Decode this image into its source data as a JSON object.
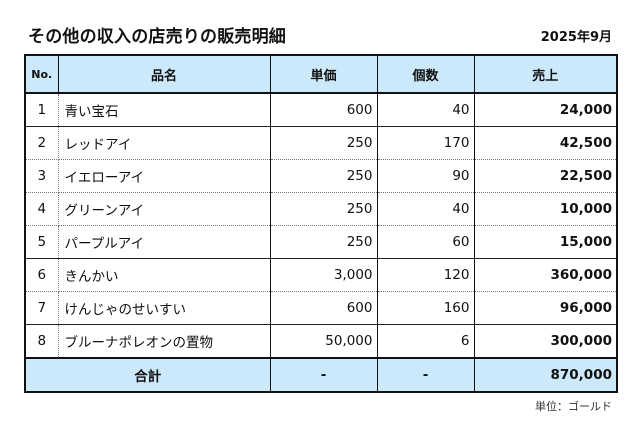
{
  "header": {
    "title": "その他の収入の店売りの販売明細",
    "period": "2025年9月"
  },
  "table": {
    "columns": [
      "No.",
      "品名",
      "単価",
      "個数",
      "売上"
    ],
    "rows": [
      {
        "no": "1",
        "name": "青い宝石",
        "price": "600",
        "qty": "40",
        "sales": "24,000"
      },
      {
        "no": "2",
        "name": "レッドアイ",
        "price": "250",
        "qty": "170",
        "sales": "42,500"
      },
      {
        "no": "3",
        "name": "イエローアイ",
        "price": "250",
        "qty": "90",
        "sales": "22,500"
      },
      {
        "no": "4",
        "name": "グリーンアイ",
        "price": "250",
        "qty": "40",
        "sales": "10,000"
      },
      {
        "no": "5",
        "name": "パープルアイ",
        "price": "250",
        "qty": "60",
        "sales": "15,000"
      },
      {
        "no": "6",
        "name": "きんかい",
        "price": "3,000",
        "qty": "120",
        "sales": "360,000"
      },
      {
        "no": "7",
        "name": "けんじゃのせいすい",
        "price": "600",
        "qty": "160",
        "sales": "96,000"
      },
      {
        "no": "8",
        "name": "ブルーナポレオンの置物",
        "price": "50,000",
        "qty": "6",
        "sales": "300,000"
      }
    ],
    "total": {
      "label": "合計",
      "price": "-",
      "qty": "-",
      "sales": "870,000"
    }
  },
  "footer": {
    "unit": "単位：ゴールド"
  },
  "colors": {
    "header_bg": "#cce9fb",
    "border": "#111111"
  }
}
